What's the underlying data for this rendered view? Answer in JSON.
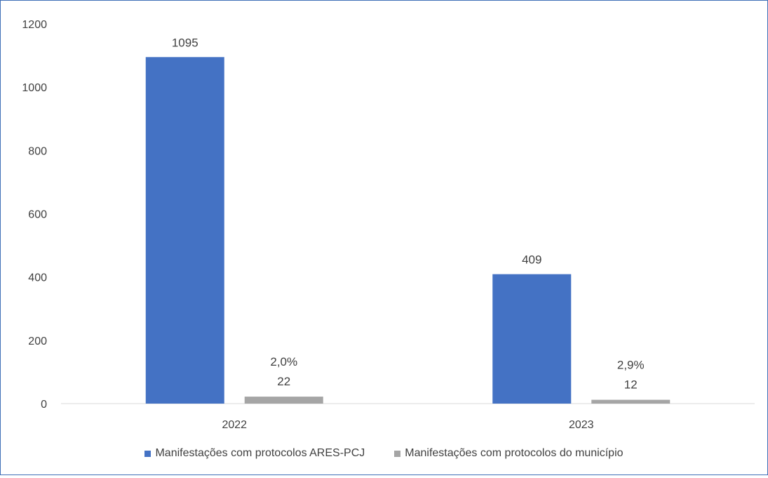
{
  "chart_data": {
    "type": "bar",
    "title": "",
    "xlabel": "",
    "ylabel": "",
    "categories": [
      "2022",
      "2023"
    ],
    "ylim": [
      0,
      1200
    ],
    "yticks": [
      0,
      200,
      400,
      600,
      800,
      1000,
      1200
    ],
    "grid": false,
    "legend_position": "bottom",
    "series": [
      {
        "name": "Manifestações com protocolos ARES-PCJ",
        "color": "#4472c4",
        "values": [
          1095,
          409
        ],
        "labels": [
          "1095",
          "409"
        ]
      },
      {
        "name": "Manifestações com protocolos do município",
        "color": "#a5a5a5",
        "values": [
          22,
          12
        ],
        "labels": [
          "22",
          "12"
        ],
        "percent_labels": [
          "2,0%",
          "2,9%"
        ]
      }
    ]
  }
}
